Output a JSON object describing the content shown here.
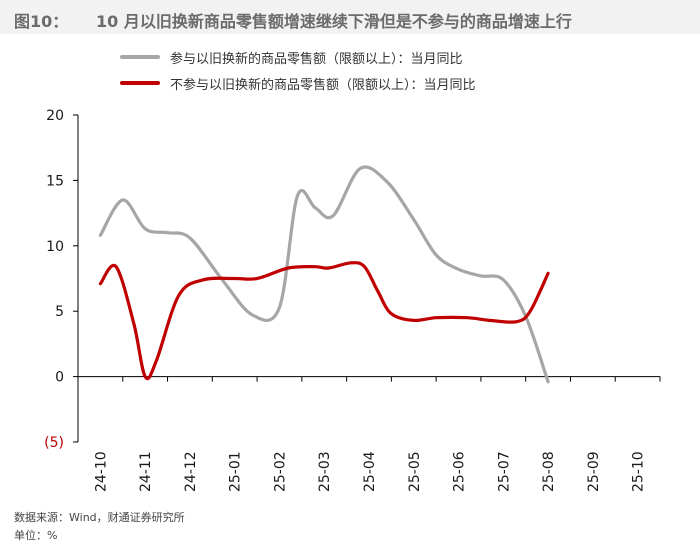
{
  "header": {
    "figure_label": "图10：",
    "title": "10 月以旧换新商品零售额增速继续下滑但是不参与的商品增速上行"
  },
  "colors": {
    "series_1": "#a6a6a6",
    "series_2": "#c00000",
    "axis": "#000000",
    "negative_tick": "#c00000"
  },
  "chart_data": {
    "type": "line",
    "title": "10 月以旧换新商品零售额增速继续下滑但是不参与的商品增速上行",
    "xlabel": "",
    "ylabel": "",
    "ylim": [
      -5,
      20
    ],
    "y_ticks": [
      20,
      15,
      10,
      5,
      0,
      -5
    ],
    "y_tick_labels": [
      "20",
      "15",
      "10",
      "5",
      "0",
      "(5)"
    ],
    "categories": [
      "24-10",
      "24-11",
      "24-12",
      "25-01",
      "25-02",
      "25-03",
      "25-04",
      "25-05",
      "25-06",
      "25-07",
      "25-08",
      "25-09",
      "25-10"
    ],
    "legend_position": "top-left",
    "grid": false,
    "series": [
      {
        "name": "参与以旧换新的商品零售额（限额以上）：当月同比",
        "color": "#a6a6a6",
        "points": [
          [
            0,
            10.8
          ],
          [
            0.5,
            13.5
          ],
          [
            1,
            11.3
          ],
          [
            1.5,
            11.0
          ],
          [
            2,
            10.6
          ],
          [
            2.7,
            7.5
          ],
          [
            3.4,
            4.7
          ],
          [
            4,
            5.3
          ],
          [
            4.4,
            13.8
          ],
          [
            4.8,
            12.9
          ],
          [
            5.2,
            12.3
          ],
          [
            5.8,
            15.9
          ],
          [
            6.4,
            14.9
          ],
          [
            7,
            12.0
          ],
          [
            7.5,
            9.3
          ],
          [
            8,
            8.2
          ],
          [
            8.5,
            7.7
          ],
          [
            9,
            7.4
          ],
          [
            9.5,
            4.6
          ],
          [
            10,
            -0.4
          ]
        ]
      },
      {
        "name": "不参与以旧换新的商品零售额（限额以上）：当月同比",
        "color": "#c00000",
        "points": [
          [
            0,
            7.1
          ],
          [
            0.35,
            8.4
          ],
          [
            0.75,
            4.0
          ],
          [
            1,
            0.0
          ],
          [
            1.25,
            1.2
          ],
          [
            1.75,
            6.2
          ],
          [
            2.3,
            7.4
          ],
          [
            3,
            7.5
          ],
          [
            3.5,
            7.5
          ],
          [
            4.2,
            8.3
          ],
          [
            4.8,
            8.4
          ],
          [
            5.1,
            8.3
          ],
          [
            5.6,
            8.7
          ],
          [
            5.9,
            8.4
          ],
          [
            6.2,
            6.5
          ],
          [
            6.5,
            4.8
          ],
          [
            7,
            4.3
          ],
          [
            7.5,
            4.5
          ],
          [
            8.2,
            4.5
          ],
          [
            8.7,
            4.3
          ],
          [
            9.3,
            4.2
          ],
          [
            9.6,
            5.0
          ],
          [
            10,
            7.9
          ]
        ]
      }
    ]
  },
  "footer": {
    "source": "数据来源：Wind，财通证券研究所",
    "unit": "单位：%"
  }
}
